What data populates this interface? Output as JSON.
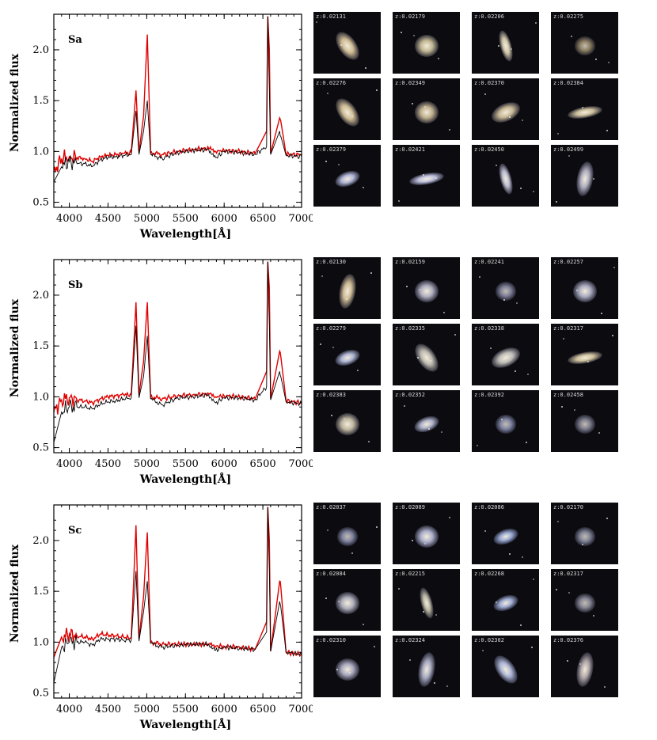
{
  "axes": {
    "xlabel": "Wavelength[Å]",
    "ylabel": "Normalized flux",
    "xticks": [
      "4000",
      "4500",
      "5000",
      "5500",
      "6000",
      "6500",
      "7000"
    ],
    "yticks": [
      "0.5",
      "1.0",
      "1.5",
      "2.0"
    ]
  },
  "chart_data": [
    {
      "type": "line",
      "label": "Sa",
      "xlabel": "Wavelength[Å]",
      "ylabel": "Normalized flux",
      "xlim": [
        3800,
        7000
      ],
      "ylim": [
        0.45,
        2.35
      ],
      "series": [
        {
          "color": "#e00000",
          "values": [
            [
              3800,
              0.8
            ],
            [
              3900,
              0.93
            ],
            [
              4000,
              0.95
            ],
            [
              4100,
              0.94
            ],
            [
              4200,
              0.93
            ],
            [
              4300,
              0.9
            ],
            [
              4400,
              0.95
            ],
            [
              4500,
              0.96
            ],
            [
              4600,
              0.97
            ],
            [
              4700,
              0.98
            ],
            [
              4800,
              0.99
            ],
            [
              4861,
              1.6
            ],
            [
              4900,
              0.99
            ],
            [
              4959,
              1.35
            ],
            [
              5007,
              2.15
            ],
            [
              5050,
              0.99
            ],
            [
              5200,
              0.97
            ],
            [
              5400,
              1.0
            ],
            [
              5600,
              1.02
            ],
            [
              5800,
              1.03
            ],
            [
              5890,
              1.0
            ],
            [
              6000,
              1.01
            ],
            [
              6200,
              1.0
            ],
            [
              6400,
              0.98
            ],
            [
              6548,
              1.2
            ],
            [
              6563,
              2.33
            ],
            [
              6584,
              2.0
            ],
            [
              6600,
              0.98
            ],
            [
              6717,
              1.33
            ],
            [
              6731,
              1.3
            ],
            [
              6800,
              0.97
            ],
            [
              7000,
              0.97
            ]
          ]
        },
        {
          "color": "#000000",
          "values": [
            [
              3800,
              0.7
            ],
            [
              3900,
              0.85
            ],
            [
              4000,
              0.9
            ],
            [
              4100,
              0.88
            ],
            [
              4200,
              0.88
            ],
            [
              4300,
              0.85
            ],
            [
              4400,
              0.92
            ],
            [
              4500,
              0.94
            ],
            [
              4600,
              0.95
            ],
            [
              4700,
              0.96
            ],
            [
              4800,
              0.97
            ],
            [
              4861,
              1.4
            ],
            [
              4900,
              0.97
            ],
            [
              4959,
              1.2
            ],
            [
              5007,
              1.5
            ],
            [
              5050,
              0.97
            ],
            [
              5200,
              0.93
            ],
            [
              5400,
              0.99
            ],
            [
              5600,
              1.01
            ],
            [
              5800,
              1.02
            ],
            [
              5890,
              0.94
            ],
            [
              6000,
              1.0
            ],
            [
              6200,
              0.99
            ],
            [
              6400,
              0.97
            ],
            [
              6548,
              1.05
            ],
            [
              6563,
              2.33
            ],
            [
              6584,
              1.6
            ],
            [
              6600,
              0.97
            ],
            [
              6717,
              1.2
            ],
            [
              6731,
              1.15
            ],
            [
              6800,
              0.96
            ],
            [
              7000,
              0.95
            ]
          ]
        }
      ]
    },
    {
      "type": "line",
      "label": "Sb",
      "xlabel": "Wavelength[Å]",
      "ylabel": "Normalized flux",
      "xlim": [
        3800,
        7000
      ],
      "ylim": [
        0.45,
        2.35
      ],
      "series": [
        {
          "color": "#e00000",
          "values": [
            [
              3800,
              0.85
            ],
            [
              3900,
              0.97
            ],
            [
              4000,
              0.99
            ],
            [
              4100,
              0.97
            ],
            [
              4200,
              0.96
            ],
            [
              4300,
              0.94
            ],
            [
              4400,
              0.98
            ],
            [
              4500,
              1.0
            ],
            [
              4600,
              1.01
            ],
            [
              4700,
              1.02
            ],
            [
              4800,
              1.02
            ],
            [
              4861,
              1.93
            ],
            [
              4900,
              1.02
            ],
            [
              4959,
              1.35
            ],
            [
              5007,
              1.93
            ],
            [
              5050,
              1.0
            ],
            [
              5200,
              0.98
            ],
            [
              5400,
              1.01
            ],
            [
              5600,
              1.02
            ],
            [
              5800,
              1.03
            ],
            [
              5890,
              1.0
            ],
            [
              6000,
              1.01
            ],
            [
              6200,
              1.0
            ],
            [
              6400,
              0.98
            ],
            [
              6548,
              1.25
            ],
            [
              6563,
              2.33
            ],
            [
              6584,
              2.07
            ],
            [
              6600,
              0.98
            ],
            [
              6717,
              1.45
            ],
            [
              6731,
              1.4
            ],
            [
              6800,
              0.96
            ],
            [
              7000,
              0.94
            ]
          ]
        },
        {
          "color": "#000000",
          "values": [
            [
              3800,
              0.55
            ],
            [
              3900,
              0.85
            ],
            [
              4000,
              0.9
            ],
            [
              4100,
              0.9
            ],
            [
              4200,
              0.9
            ],
            [
              4300,
              0.88
            ],
            [
              4400,
              0.93
            ],
            [
              4500,
              0.95
            ],
            [
              4600,
              0.96
            ],
            [
              4700,
              0.98
            ],
            [
              4800,
              0.99
            ],
            [
              4861,
              1.7
            ],
            [
              4900,
              0.99
            ],
            [
              4959,
              1.2
            ],
            [
              5007,
              1.6
            ],
            [
              5050,
              0.98
            ],
            [
              5200,
              0.92
            ],
            [
              5400,
              0.99
            ],
            [
              5600,
              1.0
            ],
            [
              5800,
              1.02
            ],
            [
              5890,
              0.94
            ],
            [
              6000,
              0.99
            ],
            [
              6200,
              0.99
            ],
            [
              6400,
              0.97
            ],
            [
              6548,
              1.1
            ],
            [
              6563,
              2.33
            ],
            [
              6584,
              1.7
            ],
            [
              6600,
              0.97
            ],
            [
              6717,
              1.25
            ],
            [
              6731,
              1.2
            ],
            [
              6800,
              0.95
            ],
            [
              7000,
              0.93
            ]
          ]
        }
      ]
    },
    {
      "type": "line",
      "label": "Sc",
      "xlabel": "Wavelength[Å]",
      "ylabel": "Normalized flux",
      "xlim": [
        3800,
        7000
      ],
      "ylim": [
        0.45,
        2.35
      ],
      "series": [
        {
          "color": "#e00000",
          "values": [
            [
              3800,
              0.85
            ],
            [
              3900,
              1.05
            ],
            [
              4000,
              1.08
            ],
            [
              4100,
              1.06
            ],
            [
              4200,
              1.05
            ],
            [
              4300,
              1.03
            ],
            [
              4400,
              1.08
            ],
            [
              4500,
              1.07
            ],
            [
              4600,
              1.06
            ],
            [
              4700,
              1.05
            ],
            [
              4800,
              1.04
            ],
            [
              4861,
              2.15
            ],
            [
              4900,
              1.03
            ],
            [
              4959,
              1.45
            ],
            [
              5007,
              2.08
            ],
            [
              5050,
              1.0
            ],
            [
              5200,
              0.98
            ],
            [
              5400,
              0.98
            ],
            [
              5600,
              0.98
            ],
            [
              5800,
              0.98
            ],
            [
              5890,
              0.96
            ],
            [
              6000,
              0.96
            ],
            [
              6200,
              0.95
            ],
            [
              6400,
              0.93
            ],
            [
              6548,
              1.2
            ],
            [
              6563,
              2.33
            ],
            [
              6584,
              2.0
            ],
            [
              6600,
              0.91
            ],
            [
              6717,
              1.6
            ],
            [
              6731,
              1.55
            ],
            [
              6800,
              0.9
            ],
            [
              7000,
              0.88
            ]
          ]
        },
        {
          "color": "#000000",
          "values": [
            [
              3800,
              0.6
            ],
            [
              3900,
              0.95
            ],
            [
              4000,
              1.0
            ],
            [
              4100,
              1.0
            ],
            [
              4200,
              1.0
            ],
            [
              4300,
              0.97
            ],
            [
              4400,
              1.03
            ],
            [
              4500,
              1.03
            ],
            [
              4600,
              1.03
            ],
            [
              4700,
              1.02
            ],
            [
              4800,
              1.02
            ],
            [
              4861,
              1.7
            ],
            [
              4900,
              1.01
            ],
            [
              4959,
              1.3
            ],
            [
              5007,
              1.6
            ],
            [
              5050,
              0.99
            ],
            [
              5200,
              0.95
            ],
            [
              5400,
              0.97
            ],
            [
              5600,
              0.98
            ],
            [
              5800,
              0.98
            ],
            [
              5890,
              0.92
            ],
            [
              6000,
              0.95
            ],
            [
              6200,
              0.94
            ],
            [
              6400,
              0.93
            ],
            [
              6548,
              1.1
            ],
            [
              6563,
              2.33
            ],
            [
              6584,
              1.7
            ],
            [
              6600,
              0.91
            ],
            [
              6717,
              1.4
            ],
            [
              6731,
              1.35
            ],
            [
              6800,
              0.9
            ],
            [
              7000,
              0.88
            ]
          ]
        }
      ]
    }
  ],
  "panels": [
    {
      "label": "Sa",
      "thumbnails": [
        {
          "z": "z:0.02131",
          "shape": "spiral-tilted",
          "color": "#d8c49a"
        },
        {
          "z": "z:0.02179",
          "shape": "round",
          "color": "#cbbf9a"
        },
        {
          "z": "z:0.02206",
          "shape": "edge-steep",
          "color": "#d9cfb0"
        },
        {
          "z": "z:0.02275",
          "shape": "round-faint",
          "color": "#b9a67e"
        },
        {
          "z": "z:0.02276",
          "shape": "spiral-tilted",
          "color": "#d8c49a"
        },
        {
          "z": "z:0.02349",
          "shape": "round",
          "color": "#c8b894"
        },
        {
          "z": "z:0.02370",
          "shape": "tilted",
          "color": "#d0c09c"
        },
        {
          "z": "z:0.02384",
          "shape": "edge-flat",
          "color": "#d6c7a2"
        },
        {
          "z": "z:0.02379",
          "shape": "oval-blue",
          "color": "#b9bfe0"
        },
        {
          "z": "z:0.02421",
          "shape": "edge-flat",
          "color": "#c8cbe8"
        },
        {
          "z": "z:0.02450",
          "shape": "edge-steep",
          "color": "#c6c7da"
        },
        {
          "z": "z:0.02499",
          "shape": "spiral-vertical",
          "color": "#b8b6c8"
        }
      ]
    },
    {
      "label": "Sb",
      "thumbnails": [
        {
          "z": "z:0.02130",
          "shape": "spiral-vertical",
          "color": "#d6c29a"
        },
        {
          "z": "z:0.02159",
          "shape": "round",
          "color": "#b9b7c9"
        },
        {
          "z": "z:0.02241",
          "shape": "round-faint",
          "color": "#a7a9c6"
        },
        {
          "z": "z:0.02257",
          "shape": "round",
          "color": "#b3b4ca"
        },
        {
          "z": "z:0.02279",
          "shape": "oval-blue",
          "color": "#b5bddc"
        },
        {
          "z": "z:0.02335",
          "shape": "spiral-tilted",
          "color": "#c8c3b8"
        },
        {
          "z": "z:0.02338",
          "shape": "tilted",
          "color": "#c9c6c0"
        },
        {
          "z": "z:0.02317",
          "shape": "edge-flat",
          "color": "#d8c9a3"
        },
        {
          "z": "z:0.02383",
          "shape": "round",
          "color": "#c9c0a8"
        },
        {
          "z": "z:0.02352",
          "shape": "oval-blue",
          "color": "#b7bad3"
        },
        {
          "z": "z:0.02392",
          "shape": "round-faint",
          "color": "#aab1d6"
        },
        {
          "z": "z:0.02458",
          "shape": "round-faint",
          "color": "#a6a4b8"
        }
      ]
    },
    {
      "label": "Sc",
      "thumbnails": [
        {
          "z": "z:0.02037",
          "shape": "round-faint",
          "color": "#aab0d2"
        },
        {
          "z": "z:0.02089",
          "shape": "round",
          "color": "#b5b8d4"
        },
        {
          "z": "z:0.02086",
          "shape": "oval-blue",
          "color": "#9fb1dc"
        },
        {
          "z": "z:0.02170",
          "shape": "round-faint",
          "color": "#a9adc4"
        },
        {
          "z": "z:0.02084",
          "shape": "round",
          "color": "#b9b8c6"
        },
        {
          "z": "z:0.02215",
          "shape": "edge-steep",
          "color": "#c3bfaa"
        },
        {
          "z": "z:0.02268",
          "shape": "oval-blue",
          "color": "#a7b5dd"
        },
        {
          "z": "z:0.02317",
          "shape": "round-faint",
          "color": "#afaec0"
        },
        {
          "z": "z:0.02310",
          "shape": "round",
          "color": "#b3b2c8"
        },
        {
          "z": "z:0.02324",
          "shape": "spiral-vertical",
          "color": "#b0b3c9"
        },
        {
          "z": "z:0.02302",
          "shape": "spiral-tilted",
          "color": "#b4bde0"
        },
        {
          "z": "z:0.02376",
          "shape": "spiral-vertical",
          "color": "#b8aeb0"
        }
      ]
    }
  ]
}
